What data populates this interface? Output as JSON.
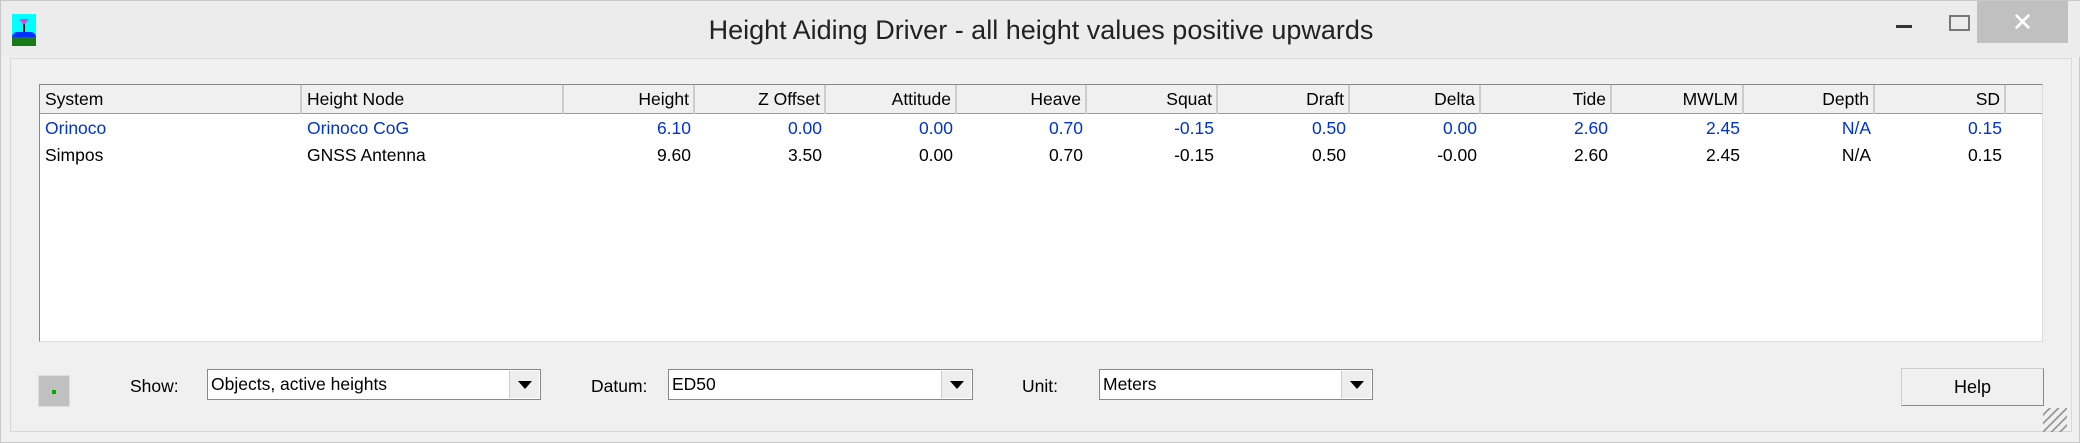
{
  "window": {
    "title": "Height Aiding Driver - all height values positive upwards",
    "close": "✕"
  },
  "table": {
    "columns": [
      "System",
      "Height Node",
      "Height",
      "Z Offset",
      "Attitude",
      "Heave",
      "Squat",
      "Draft",
      "Delta",
      "Tide",
      "MWLM",
      "Depth",
      "SD"
    ],
    "rows": [
      {
        "cells": [
          "Orinoco",
          "Orinoco CoG",
          "6.10",
          "0.00",
          "0.00",
          "0.70",
          "-0.15",
          "0.50",
          "0.00",
          "2.60",
          "2.45",
          "N/A",
          "0.15"
        ],
        "color": "#0033cc"
      },
      {
        "cells": [
          "Simpos",
          "GNSS Antenna",
          "9.60",
          "3.50",
          "0.00",
          "0.70",
          "-0.15",
          "0.50",
          "-0.00",
          "2.60",
          "2.45",
          "N/A",
          "0.15"
        ],
        "color": "#000000"
      }
    ]
  },
  "controls": {
    "show_label": "Show:",
    "show_value": "Objects, active heights",
    "datum_label": "Datum:",
    "datum_value": "ED50",
    "unit_label": "Unit:",
    "unit_value": "Meters",
    "help_label": "Help"
  }
}
